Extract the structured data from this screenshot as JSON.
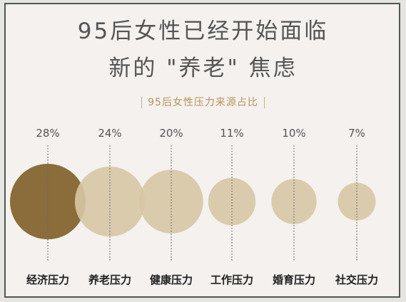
{
  "title_line1": "95后女性已经开始面临",
  "title_line2": "新的 \"养老\" 焦虑",
  "subtitle": "95后女性压力来源占比",
  "colors": {
    "highlight": "#8a6d3b",
    "bubble": "#d7c6a4",
    "line": "#666666"
  },
  "chart_data": {
    "type": "bubble",
    "title": "95后女性压力来源占比",
    "categories": [
      "经济压力",
      "养老压力",
      "健康压力",
      "工作压力",
      "婚育压力",
      "社交压力"
    ],
    "values": [
      28,
      24,
      20,
      11,
      10,
      7
    ],
    "value_labels": [
      "28%",
      "24%",
      "20%",
      "11%",
      "10%",
      "7%"
    ],
    "unit": "%"
  }
}
